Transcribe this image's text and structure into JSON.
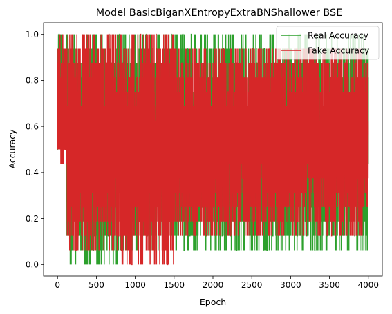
{
  "chart_data": {
    "type": "line",
    "title": "Model BasicBiganXEntropyExtraBNShallower BSE",
    "xlabel": "Epoch",
    "ylabel": "Accuracy",
    "xlim": [
      -180,
      4180
    ],
    "ylim": [
      -0.05,
      1.05
    ],
    "xticks": [
      0,
      500,
      1000,
      1500,
      2000,
      2500,
      3000,
      3500,
      4000
    ],
    "yticks": [
      0.0,
      0.2,
      0.4,
      0.6,
      0.8,
      1.0
    ],
    "xtick_labels": [
      "0",
      "500",
      "1000",
      "1500",
      "2000",
      "2500",
      "3000",
      "3500",
      "4000"
    ],
    "ytick_labels": [
      "0.0",
      "0.2",
      "0.4",
      "0.6",
      "0.8",
      "1.0"
    ],
    "grid": false,
    "legend_position": "top-right",
    "series": [
      {
        "name": "Real Accuracy",
        "color": "#2ca02c",
        "x_start": 0,
        "x_end": 4000,
        "n_points": 4000,
        "value_set": [
          0.0,
          0.0625,
          0.125,
          0.1875,
          0.25,
          0.3125,
          0.375,
          0.4375,
          0.5,
          0.5625,
          0.625,
          0.6875,
          0.75,
          0.8125,
          0.875,
          0.9375,
          1.0
        ],
        "segments": [
          {
            "x_from": 0,
            "x_to": 120,
            "min": 0.5,
            "max": 1.0
          },
          {
            "x_from": 120,
            "x_to": 800,
            "min": 0.0,
            "max": 1.0
          },
          {
            "x_from": 800,
            "x_to": 4000,
            "min": 0.0625,
            "max": 1.0
          }
        ]
      },
      {
        "name": "Fake Accuracy",
        "color": "#d62728",
        "x_start": 0,
        "x_end": 4000,
        "n_points": 4000,
        "value_set": [
          0.0,
          0.0625,
          0.125,
          0.1875,
          0.25,
          0.3125,
          0.375,
          0.4375,
          0.5,
          0.5625,
          0.625,
          0.6875,
          0.75,
          0.8125,
          0.875,
          0.9375,
          1.0
        ],
        "segments": [
          {
            "x_from": 0,
            "x_to": 120,
            "min": 0.4375,
            "max": 1.0
          },
          {
            "x_from": 120,
            "x_to": 800,
            "min": 0.0625,
            "max": 1.0
          },
          {
            "x_from": 800,
            "x_to": 1500,
            "min": 0.0,
            "max": 1.0
          },
          {
            "x_from": 1500,
            "x_to": 4000,
            "min": 0.125,
            "max": 0.9375
          }
        ]
      }
    ]
  }
}
